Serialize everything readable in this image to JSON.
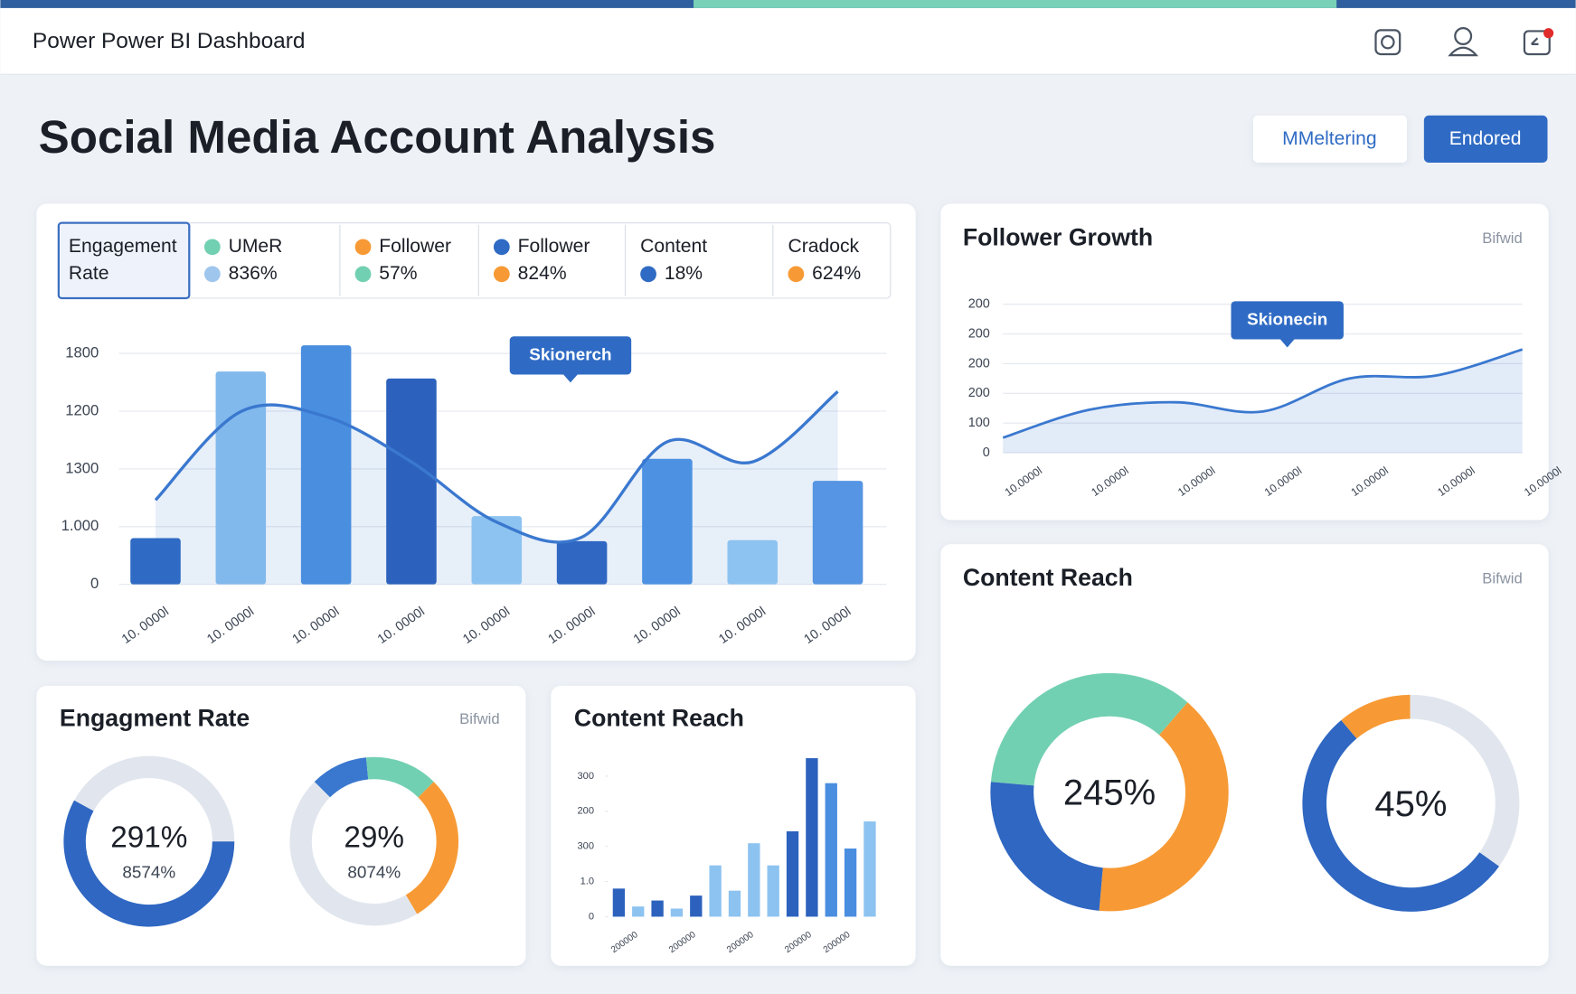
{
  "header": {
    "title": "Power Power BI Dashboard"
  },
  "page_title": "Social Media Account Analysis",
  "buttons": [
    "MMeltering",
    "Endored"
  ],
  "kpis": [
    {
      "label_lines": [
        "Engagement",
        "Rate"
      ]
    },
    {
      "rows": [
        {
          "text": "UMeR",
          "color": "#72d0b2"
        },
        {
          "text": "836%",
          "color": "#9fc6ec"
        }
      ]
    },
    {
      "rows": [
        {
          "text": "Follower",
          "color": "#f79a35"
        },
        {
          "text": "57%",
          "color": "#72d0b2"
        }
      ]
    },
    {
      "rows": [
        {
          "text": "Follower",
          "color": "#2f6bc4"
        },
        {
          "text": "824%",
          "color": "#f79a35"
        }
      ]
    },
    {
      "rows": [
        {
          "text": "Content"
        },
        {
          "text": "18%",
          "color": "#2f6bc4"
        }
      ]
    },
    {
      "rows": [
        {
          "text": "Cradock"
        },
        {
          "text": "624%",
          "color": "#f79a35"
        }
      ]
    }
  ],
  "chart_data": [
    {
      "type": "combo",
      "categories": [
        "10. 0000l",
        "10. 0000l",
        "10. 0000l",
        "10. 0000l",
        "10. 0000l",
        "10. 0000l",
        "10. 0000l",
        "10. 0000l",
        "10. 0000l"
      ],
      "values": [
        400,
        1843,
        2070,
        1783,
        591,
        374,
        1087,
        383,
        896
      ],
      "colors": [
        "#2f6bc4",
        "#82b9ec",
        "#4a8ee0",
        "#2c62bd",
        "#8dc3f0",
        "#2f67c2",
        "#4d92e2",
        "#8dc3f0",
        "#5595e3"
      ],
      "line_values": [
        730,
        1496,
        1452,
        1061,
        539,
        409,
        1235,
        1061,
        1670
      ],
      "line_color": "#3a78cf",
      "annotation": "Skionerch",
      "ylim": [
        0,
        2100
      ],
      "yticks": [
        0,
        {
          "value": 500,
          "label": "1.000"
        },
        {
          "value": 1000,
          "label": "1300"
        },
        {
          "value": 1500,
          "label": "1200"
        },
        {
          "value": 2000,
          "label": "1800"
        }
      ],
      "grid": true
    },
    {
      "type": "area",
      "title": "Follower Growth",
      "subtitle": "Bifwid",
      "annotation": "Skionecin",
      "categories": [
        "10.0000l",
        "10.0000l",
        "10.0000l",
        "10.0000l",
        "10.0000l",
        "10.0000l",
        "10.0000l"
      ],
      "values": [
        51,
        145,
        170,
        139,
        250,
        260,
        348
      ],
      "color": "#3a78cf",
      "ylim": [
        0,
        500
      ],
      "yticks": [
        0,
        {
          "value": 100,
          "label": "100"
        },
        {
          "value": 200,
          "label": "200"
        },
        {
          "value": 300,
          "label": "200"
        },
        {
          "value": 400,
          "label": "200"
        },
        {
          "value": 500,
          "label": "200"
        }
      ],
      "grid": true
    },
    {
      "type": "donut",
      "title": "Engagment Rate",
      "subtitle": "Bifwid",
      "donuts": [
        {
          "center_label": "291%",
          "sub_label": "8574%",
          "values": [
            58,
            42
          ],
          "colors": [
            "#2f67c2",
            "#e1e6ee"
          ]
        },
        {
          "center_label": "29%",
          "sub_label": "8074%",
          "values": [
            11,
            14,
            29,
            46
          ],
          "colors": [
            "#3a78cf",
            "#72d0b2",
            "#f79a35",
            "#e1e6ee"
          ]
        }
      ]
    },
    {
      "type": "bar",
      "title": "Content Reach",
      "categories": [
        "200000",
        null,
        null,
        "200000",
        null,
        null,
        "200000",
        null,
        null,
        "200000",
        null,
        "200000",
        null,
        null
      ],
      "values": [
        80,
        29,
        46,
        23,
        60,
        146,
        74,
        209,
        146,
        243,
        451,
        380,
        194,
        271
      ],
      "colors": [
        "#2c62bd",
        "#8dc3f0",
        "#2c62bd",
        "#8dc3f0",
        "#2c62bd",
        "#8dc3f0",
        "#8dc3f0",
        "#8dc3f0",
        "#8dc3f0",
        "#2c62bd",
        "#2c62bd",
        "#4a8ee0",
        "#4a8ee0",
        "#8dc3f0"
      ],
      "ylim": [
        0,
        460
      ],
      "yticks": [
        0,
        {
          "value": 100,
          "label": "1.0"
        },
        {
          "value": 200,
          "label": "300"
        },
        {
          "value": 300,
          "label": "200"
        },
        {
          "value": 400,
          "label": "300"
        }
      ]
    },
    {
      "type": "donut",
      "title": "Content Reach",
      "subtitle": "Bifwid",
      "donuts": [
        {
          "center_label": "245%",
          "values": [
            35,
            40,
            25
          ],
          "colors": [
            "#72d0b2",
            "#f79a35",
            "#2f67c2"
          ]
        },
        {
          "center_label": "45%",
          "values": [
            11,
            35,
            54
          ],
          "colors": [
            "#f79a35",
            "#e1e6ee",
            "#2f67c2"
          ]
        }
      ]
    }
  ]
}
